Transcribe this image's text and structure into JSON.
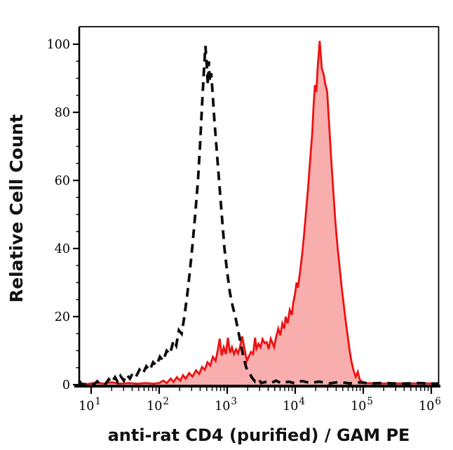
{
  "figure": {
    "background": "#ffffff"
  },
  "chart_data": {
    "type": "area",
    "subtype": "flow-cytometry-histogram-overlay",
    "title": "",
    "xlabel": "anti-rat CD4 (purified) / GAM PE",
    "ylabel": "Relative Cell Count",
    "x_scale": "log10",
    "xlim_log10": [
      0.82,
      6.1
    ],
    "ylim": [
      0,
      105
    ],
    "grid": false,
    "legend": "none",
    "x_axis": {
      "tick_label_base": "10",
      "tick_exponents": [
        1,
        2,
        3,
        4,
        5,
        6
      ],
      "minor_tick_multiples": [
        2,
        3,
        4,
        5,
        6,
        7,
        8,
        9
      ]
    },
    "y_axis": {
      "tick_values": [
        0,
        20,
        40,
        60,
        80,
        100
      ],
      "tick_labels": [
        "0",
        "20",
        "40",
        "60",
        "80",
        "100"
      ],
      "minor_tick_step": 5
    },
    "colors": {
      "control_line": "#0c0c0c",
      "sample_line": "#ee1111",
      "sample_fill": "#f9aeae",
      "axis": "#000000",
      "background": "#ffffff"
    },
    "series": [
      {
        "name": "dashed-control-histogram",
        "line_style": "dashed",
        "filled": false,
        "peak_log10x": 2.68,
        "peak_y": 99.5,
        "points": [
          [
            0.82,
            1.2
          ],
          [
            0.86,
            0.2
          ],
          [
            0.95,
            0.1
          ],
          [
            1.04,
            0.1
          ],
          [
            1.09,
            1.0
          ],
          [
            1.13,
            0.2
          ],
          [
            1.21,
            0.2
          ],
          [
            1.26,
            1.6
          ],
          [
            1.3,
            0.6
          ],
          [
            1.35,
            2.2
          ],
          [
            1.39,
            0.8
          ],
          [
            1.43,
            2.6
          ],
          [
            1.48,
            1.2
          ],
          [
            1.52,
            3.0
          ],
          [
            1.57,
            1.8
          ],
          [
            1.61,
            3.4
          ],
          [
            1.66,
            2.4
          ],
          [
            1.71,
            4.4
          ],
          [
            1.76,
            3.2
          ],
          [
            1.81,
            5.4
          ],
          [
            1.86,
            4.2
          ],
          [
            1.91,
            6.6
          ],
          [
            1.96,
            5.6
          ],
          [
            2.01,
            8.2
          ],
          [
            2.06,
            7.0
          ],
          [
            2.11,
            10.0
          ],
          [
            2.16,
            9.0
          ],
          [
            2.21,
            13.0
          ],
          [
            2.25,
            11.5
          ],
          [
            2.29,
            16.0
          ],
          [
            2.33,
            15.0
          ],
          [
            2.37,
            20.0
          ],
          [
            2.41,
            26.0
          ],
          [
            2.45,
            33.0
          ],
          [
            2.49,
            41.0
          ],
          [
            2.53,
            50.0
          ],
          [
            2.57,
            60.0
          ],
          [
            2.6,
            70.0
          ],
          [
            2.63,
            82.0
          ],
          [
            2.66,
            93.0
          ],
          [
            2.68,
            99.5
          ],
          [
            2.7,
            93.5
          ],
          [
            2.715,
            88.0
          ],
          [
            2.73,
            95.0
          ],
          [
            2.745,
            89.0
          ],
          [
            2.765,
            91.5
          ],
          [
            2.785,
            86.0
          ],
          [
            2.81,
            78.0
          ],
          [
            2.845,
            69.0
          ],
          [
            2.88,
            60.0
          ],
          [
            2.92,
            50.0
          ],
          [
            2.96,
            40.0
          ],
          [
            3.0,
            33.0
          ],
          [
            3.04,
            27.0
          ],
          [
            3.08,
            23.0
          ],
          [
            3.12,
            20.0
          ],
          [
            3.16,
            16.0
          ],
          [
            3.2,
            12.0
          ],
          [
            3.24,
            8.0
          ],
          [
            3.28,
            5.0
          ],
          [
            3.32,
            3.8
          ],
          [
            3.36,
            2.2
          ],
          [
            3.41,
            0.9
          ],
          [
            3.46,
            1.7
          ],
          [
            3.5,
            0.5
          ],
          [
            3.56,
            0.8
          ],
          [
            3.63,
            0.4
          ],
          [
            3.72,
            1.2
          ],
          [
            3.8,
            0.4
          ],
          [
            3.9,
            0.9
          ],
          [
            4.0,
            0.4
          ],
          [
            4.1,
            1.1
          ],
          [
            4.22,
            0.5
          ],
          [
            4.35,
            0.9
          ],
          [
            4.5,
            0.4
          ],
          [
            4.65,
            0.8
          ],
          [
            4.8,
            0.4
          ],
          [
            4.95,
            0.7
          ],
          [
            5.1,
            0.4
          ],
          [
            5.3,
            0.5
          ],
          [
            5.55,
            0.3
          ],
          [
            5.8,
            0.5
          ],
          [
            6.05,
            0.3
          ],
          [
            6.1,
            0.4
          ]
        ]
      },
      {
        "name": "red-filled-stained-histogram",
        "line_style": "solid",
        "filled": true,
        "peak_log10x": 4.36,
        "peak_y": 101,
        "points": [
          [
            0.82,
            0.3
          ],
          [
            0.95,
            0.2
          ],
          [
            1.08,
            0.6
          ],
          [
            1.18,
            0.3
          ],
          [
            1.3,
            0.7
          ],
          [
            1.42,
            0.3
          ],
          [
            1.55,
            0.5
          ],
          [
            1.68,
            0.3
          ],
          [
            1.8,
            0.5
          ],
          [
            1.92,
            0.3
          ],
          [
            2.0,
            0.5
          ],
          [
            2.06,
            1.2
          ],
          [
            2.11,
            0.5
          ],
          [
            2.17,
            1.8
          ],
          [
            2.21,
            0.8
          ],
          [
            2.26,
            2.2
          ],
          [
            2.31,
            1.2
          ],
          [
            2.35,
            2.8
          ],
          [
            2.39,
            1.8
          ],
          [
            2.44,
            3.4
          ],
          [
            2.49,
            2.4
          ],
          [
            2.54,
            4.2
          ],
          [
            2.59,
            3.2
          ],
          [
            2.63,
            5.2
          ],
          [
            2.67,
            4.4
          ],
          [
            2.71,
            6.6
          ],
          [
            2.75,
            5.6
          ],
          [
            2.79,
            8.2
          ],
          [
            2.83,
            7.0
          ],
          [
            2.86,
            10.0
          ],
          [
            2.89,
            13.5
          ],
          [
            2.92,
            8.6
          ],
          [
            2.95,
            11.0
          ],
          [
            2.98,
            9.0
          ],
          [
            3.01,
            13.8
          ],
          [
            3.04,
            9.4
          ],
          [
            3.07,
            11.0
          ],
          [
            3.1,
            9.0
          ],
          [
            3.13,
            10.4
          ],
          [
            3.16,
            9.2
          ],
          [
            3.19,
            11.2
          ],
          [
            3.22,
            14.2
          ],
          [
            3.26,
            10.0
          ],
          [
            3.29,
            7.0
          ],
          [
            3.32,
            8.4
          ],
          [
            3.35,
            9.6
          ],
          [
            3.38,
            9.0
          ],
          [
            3.41,
            13.8
          ],
          [
            3.43,
            10.6
          ],
          [
            3.46,
            12.0
          ],
          [
            3.49,
            11.0
          ],
          [
            3.52,
            13.4
          ],
          [
            3.55,
            12.2
          ],
          [
            3.58,
            12.5
          ],
          [
            3.61,
            10.5
          ],
          [
            3.64,
            13.5
          ],
          [
            3.67,
            12.0
          ],
          [
            3.69,
            11.0
          ],
          [
            3.72,
            14.0
          ],
          [
            3.75,
            16.5
          ],
          [
            3.78,
            14.5
          ],
          [
            3.81,
            18.0
          ],
          [
            3.84,
            16.5
          ],
          [
            3.86,
            20.0
          ],
          [
            3.89,
            18.0
          ],
          [
            3.92,
            22.0
          ],
          [
            3.95,
            20.5
          ],
          [
            3.97,
            24.0
          ],
          [
            4.0,
            27.0
          ],
          [
            4.02,
            30.0
          ],
          [
            4.04,
            28.5
          ],
          [
            4.07,
            33.0
          ],
          [
            4.1,
            38.0
          ],
          [
            4.13,
            44.0
          ],
          [
            4.16,
            51.0
          ],
          [
            4.19,
            58.0
          ],
          [
            4.22,
            66.0
          ],
          [
            4.25,
            74.0
          ],
          [
            4.27,
            82.0
          ],
          [
            4.29,
            88.0
          ],
          [
            4.31,
            86.0
          ],
          [
            4.33,
            93.0
          ],
          [
            4.36,
            101.0
          ],
          [
            4.375,
            97.0
          ],
          [
            4.39,
            93.0
          ],
          [
            4.42,
            91.0
          ],
          [
            4.44,
            88.5
          ],
          [
            4.47,
            86.0
          ],
          [
            4.5,
            76.0
          ],
          [
            4.53,
            66.0
          ],
          [
            4.56,
            57.0
          ],
          [
            4.59,
            48.0
          ],
          [
            4.62,
            41.0
          ],
          [
            4.65,
            35.0
          ],
          [
            4.68,
            29.0
          ],
          [
            4.71,
            24.0
          ],
          [
            4.74,
            19.0
          ],
          [
            4.77,
            14.5
          ],
          [
            4.8,
            10.0
          ],
          [
            4.83,
            6.5
          ],
          [
            4.86,
            4.0
          ],
          [
            4.89,
            2.3
          ],
          [
            4.92,
            3.8
          ],
          [
            4.95,
            1.4
          ],
          [
            4.99,
            0.8
          ],
          [
            5.05,
            0.5
          ],
          [
            5.15,
            0.4
          ],
          [
            5.4,
            0.4
          ],
          [
            5.7,
            0.4
          ],
          [
            6.0,
            0.4
          ],
          [
            6.1,
            0.4
          ]
        ]
      }
    ]
  }
}
